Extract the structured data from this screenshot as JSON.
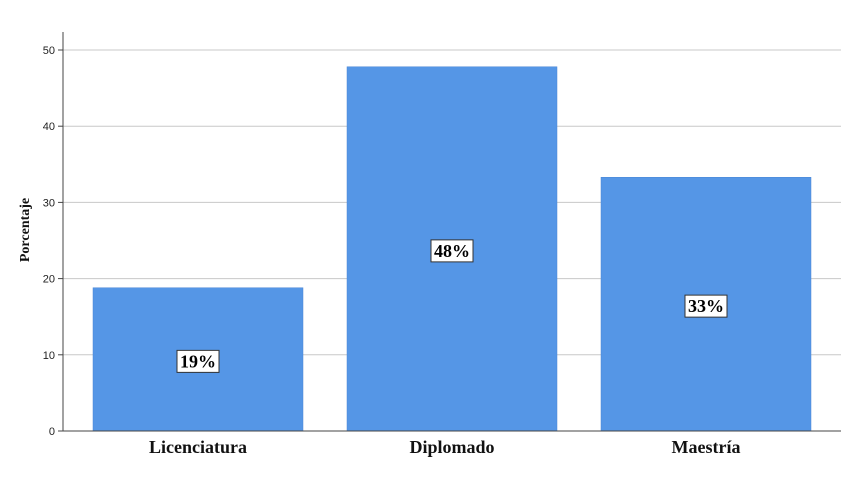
{
  "chart_data": {
    "type": "bar",
    "categories": [
      "Licenciatura",
      "Diplomado",
      "Maestría"
    ],
    "values": [
      18.8,
      47.8,
      33.3
    ],
    "data_labels": [
      "19%",
      "48%",
      "33%"
    ],
    "ylabel": "Porcentaje",
    "ylim": [
      0,
      50
    ],
    "yticks": [
      0,
      10,
      20,
      30,
      40,
      50
    ],
    "grid": true,
    "bar_color": "#5596e6"
  }
}
